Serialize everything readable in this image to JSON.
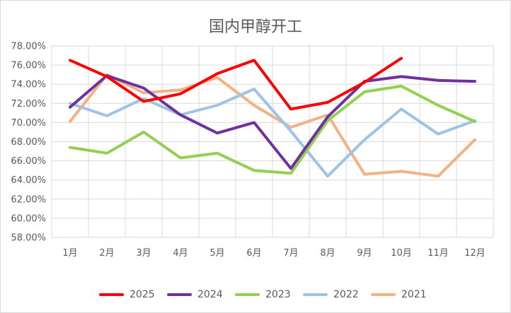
{
  "chart_data": {
    "type": "line",
    "title": "国内甲醇开工",
    "xlabel": "",
    "ylabel": "",
    "categories": [
      "1月",
      "2月",
      "3月",
      "4月",
      "5月",
      "6月",
      "7月",
      "8月",
      "9月",
      "10月",
      "11月",
      "12月"
    ],
    "y_ticks": [
      "58.00%",
      "60.00%",
      "62.00%",
      "64.00%",
      "66.00%",
      "68.00%",
      "70.00%",
      "72.00%",
      "74.00%",
      "76.00%",
      "78.00%"
    ],
    "ylim": [
      58,
      78
    ],
    "grid": true,
    "legend_position": "bottom",
    "series": [
      {
        "name": "2025",
        "color": "#ff0000",
        "values": [
          76.5,
          74.8,
          72.2,
          73.0,
          75.1,
          76.5,
          71.4,
          72.1,
          74.2,
          76.7,
          null,
          null
        ]
      },
      {
        "name": "2024",
        "color": "#7030a0",
        "values": [
          71.6,
          74.9,
          73.6,
          70.8,
          68.9,
          70.0,
          65.2,
          70.6,
          74.3,
          74.8,
          74.4,
          74.3
        ]
      },
      {
        "name": "2023",
        "color": "#92d050",
        "values": [
          67.4,
          66.8,
          69.0,
          66.3,
          66.8,
          65.0,
          64.7,
          70.2,
          73.2,
          73.8,
          71.8,
          70.1
        ]
      },
      {
        "name": "2022",
        "color": "#9dc3e6",
        "values": [
          72.0,
          70.7,
          72.5,
          70.8,
          71.8,
          73.5,
          69.1,
          64.4,
          68.2,
          71.4,
          68.8,
          70.2
        ]
      },
      {
        "name": "2021",
        "color": "#f4b183",
        "values": [
          70.1,
          75.0,
          73.1,
          73.4,
          74.7,
          71.8,
          69.5,
          70.8,
          64.6,
          64.9,
          64.4,
          68.2
        ]
      }
    ]
  }
}
